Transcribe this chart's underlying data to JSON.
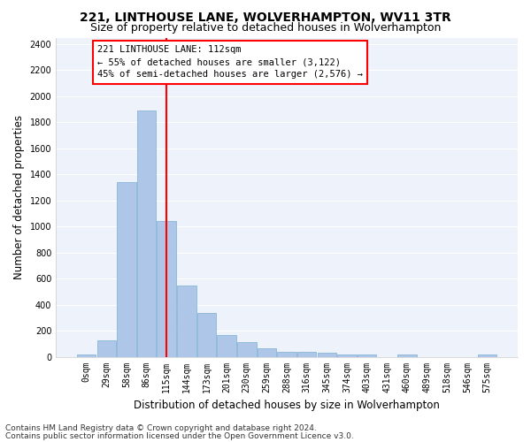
{
  "title": "221, LINTHOUSE LANE, WOLVERHAMPTON, WV11 3TR",
  "subtitle": "Size of property relative to detached houses in Wolverhampton",
  "xlabel": "Distribution of detached houses by size in Wolverhampton",
  "ylabel": "Number of detached properties",
  "bar_labels": [
    "0sqm",
    "29sqm",
    "58sqm",
    "86sqm",
    "115sqm",
    "144sqm",
    "173sqm",
    "201sqm",
    "230sqm",
    "259sqm",
    "288sqm",
    "316sqm",
    "345sqm",
    "374sqm",
    "403sqm",
    "431sqm",
    "460sqm",
    "489sqm",
    "518sqm",
    "546sqm",
    "575sqm"
  ],
  "bar_values": [
    15,
    125,
    1340,
    1890,
    1040,
    545,
    335,
    165,
    110,
    65,
    40,
    35,
    30,
    20,
    15,
    0,
    20,
    0,
    0,
    0,
    15
  ],
  "bar_color": "#aec6e8",
  "bar_edgecolor": "#7aafd4",
  "vline_x": 4,
  "vline_color": "red",
  "annotation_text1": "221 LINTHOUSE LANE: 112sqm",
  "annotation_text2": "← 55% of detached houses are smaller (3,122)",
  "annotation_text3": "45% of semi-detached houses are larger (2,576) →",
  "ylim": [
    0,
    2450
  ],
  "yticks": [
    0,
    200,
    400,
    600,
    800,
    1000,
    1200,
    1400,
    1600,
    1800,
    2000,
    2200,
    2400
  ],
  "footer1": "Contains HM Land Registry data © Crown copyright and database right 2024.",
  "footer2": "Contains public sector information licensed under the Open Government Licence v3.0.",
  "bg_color": "#eef2fb",
  "grid_color": "#ffffff",
  "title_fontsize": 10,
  "subtitle_fontsize": 9,
  "axis_label_fontsize": 8.5,
  "tick_fontsize": 7,
  "footer_fontsize": 6.5,
  "annot_fontsize": 7.5
}
